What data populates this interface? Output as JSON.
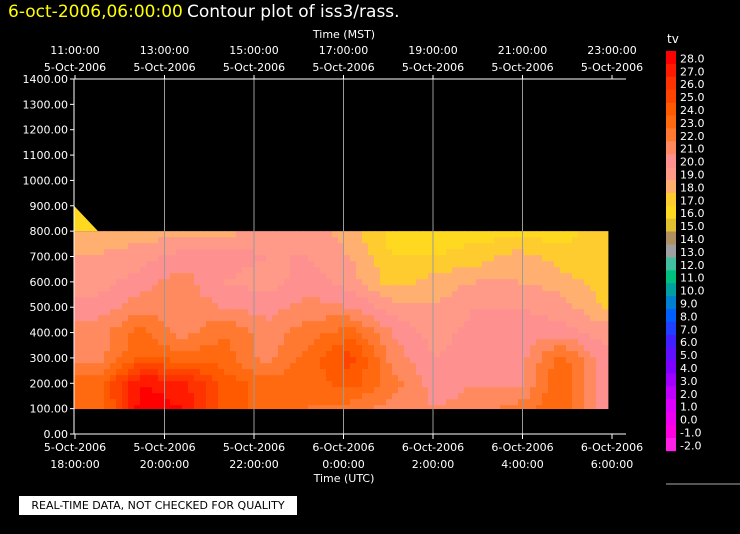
{
  "title": {
    "date": "6-oct-2006,06:00:00",
    "text": "Contour plot of iss3/rass."
  },
  "notice": "REAL-TIME DATA, NOT CHECKED FOR QUALITY",
  "chart_data": {
    "type": "heatmap",
    "x_top_label": "Time (MST)",
    "x_bottom_label": "Time (UTC)",
    "top_ticks": [
      {
        "time": "11:00:00",
        "date": "5-Oct-2006"
      },
      {
        "time": "13:00:00",
        "date": "5-Oct-2006"
      },
      {
        "time": "15:00:00",
        "date": "5-Oct-2006"
      },
      {
        "time": "17:00:00",
        "date": "5-Oct-2006"
      },
      {
        "time": "19:00:00",
        "date": "5-Oct-2006"
      },
      {
        "time": "21:00:00",
        "date": "5-Oct-2006"
      },
      {
        "time": "23:00:00",
        "date": "5-Oct-2006"
      }
    ],
    "bottom_ticks": [
      {
        "date": "5-Oct-2006",
        "time": "18:00:00"
      },
      {
        "date": "5-Oct-2006",
        "time": "20:00:00"
      },
      {
        "date": "5-Oct-2006",
        "time": "22:00:00"
      },
      {
        "date": "6-Oct-2006",
        "time": "0:00:00"
      },
      {
        "date": "6-Oct-2006",
        "time": "2:00:00"
      },
      {
        "date": "6-Oct-2006",
        "time": "4:00:00"
      },
      {
        "date": "6-Oct-2006",
        "time": "6:00:00"
      }
    ],
    "y_ticks": [
      "1400.00",
      "1300.00",
      "1200.00",
      "1100.00",
      "1000.00",
      "900.00",
      "800.00",
      "700.00",
      "600.00",
      "500.00",
      "400.00",
      "300.00",
      "200.00",
      "100.00",
      "0.00"
    ],
    "ylim": [
      0,
      1400
    ],
    "legend_title": "tv",
    "legend_levels": [
      {
        "label": "28.0",
        "color": "#ff0000"
      },
      {
        "label": "27.0",
        "color": "#ff1a00"
      },
      {
        "label": "26.0",
        "color": "#ff3300"
      },
      {
        "label": "25.0",
        "color": "#ff4400"
      },
      {
        "label": "24.0",
        "color": "#ff5a00"
      },
      {
        "label": "23.0",
        "color": "#ff6a10"
      },
      {
        "label": "22.0",
        "color": "#ff7a30"
      },
      {
        "label": "21.0",
        "color": "#ff8a60"
      },
      {
        "label": "20.0",
        "color": "#ff9090"
      },
      {
        "label": "19.0",
        "color": "#ff9a88"
      },
      {
        "label": "18.0",
        "color": "#ffb070"
      },
      {
        "label": "17.0",
        "color": "#ffcc30"
      },
      {
        "label": "16.0",
        "color": "#ffd820"
      },
      {
        "label": "15.0",
        "color": "#e0c030"
      },
      {
        "label": "14.0",
        "color": "#b09060"
      },
      {
        "label": "13.0",
        "color": "#a0a0a0"
      },
      {
        "label": "12.0",
        "color": "#40c0a0"
      },
      {
        "label": "11.0",
        "color": "#00c080"
      },
      {
        "label": "10.0",
        "color": "#00a0a0"
      },
      {
        "label": "9.0",
        "color": "#0080d0"
      },
      {
        "label": "8.0",
        "color": "#0060ff"
      },
      {
        "label": "7.0",
        "color": "#2040ff"
      },
      {
        "label": "6.0",
        "color": "#4020ff"
      },
      {
        "label": "5.0",
        "color": "#6010ff"
      },
      {
        "label": "4.0",
        "color": "#8000ff"
      },
      {
        "label": "3.0",
        "color": "#a000ff"
      },
      {
        "label": "2.0",
        "color": "#c000ff"
      },
      {
        "label": "1.0",
        "color": "#e000ff"
      },
      {
        "label": "0.0",
        "color": "#f000f0"
      },
      {
        "label": "-1.0",
        "color": "#ff00e0"
      },
      {
        "label": "-2.0",
        "color": "#ff20e8"
      }
    ],
    "x_hours": [
      0,
      1,
      2,
      3,
      4,
      5,
      6,
      7,
      8,
      9,
      10,
      11,
      12
    ],
    "z_heights": [
      100,
      200,
      300,
      400,
      500,
      600,
      700,
      800
    ],
    "tv_values": [
      [
        22.5,
        28,
        27.5,
        24,
        23,
        22.5,
        22,
        21,
        20.5,
        21,
        22,
        23.5,
        20
      ],
      [
        23,
        27.5,
        27,
        24,
        23,
        23,
        24,
        22,
        20,
        20.5,
        20,
        23.5,
        20
      ],
      [
        21,
        23.5,
        23,
        23,
        21,
        23,
        25,
        21,
        19.5,
        20,
        20,
        23,
        20
      ],
      [
        21,
        23,
        21,
        22.5,
        21,
        22,
        23,
        20.5,
        19,
        20,
        20,
        20,
        19
      ],
      [
        20,
        21,
        21,
        20.5,
        20,
        21,
        20.5,
        19,
        18.5,
        19.5,
        19.5,
        19,
        17.5
      ],
      [
        19,
        20,
        21,
        19.5,
        19,
        20,
        19,
        17,
        18,
        18.5,
        18.5,
        18,
        17
      ],
      [
        18.5,
        19,
        20,
        20,
        19.5,
        19.5,
        18.5,
        16.5,
        16.5,
        17,
        18,
        17,
        16.5
      ],
      [
        18,
        18,
        18,
        18,
        19,
        19,
        18,
        16,
        16,
        16,
        16,
        16,
        17
      ]
    ]
  }
}
